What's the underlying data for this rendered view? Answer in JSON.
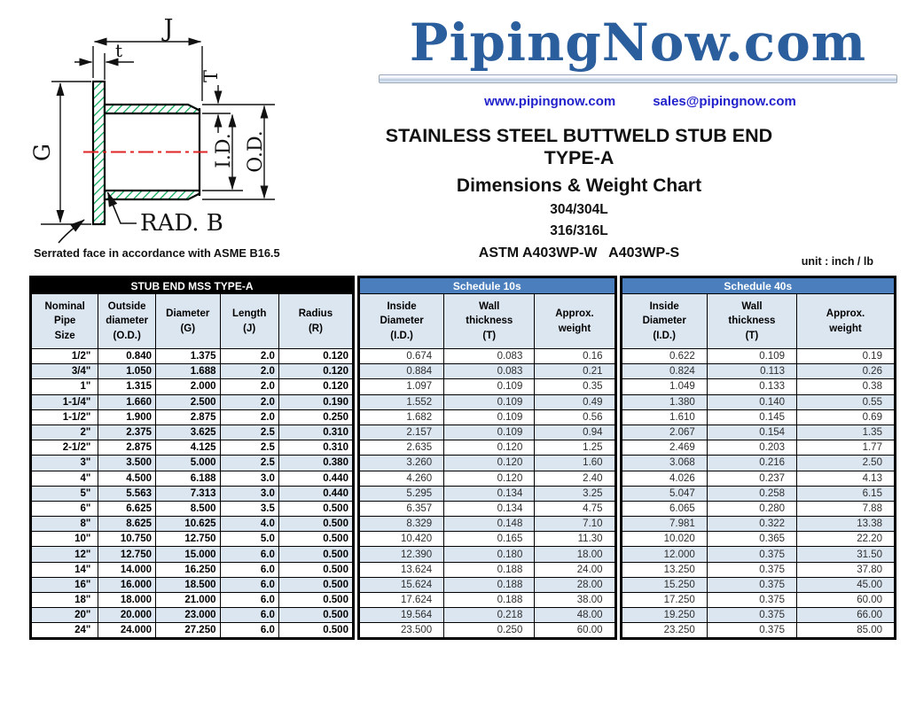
{
  "header": {
    "logo": "PipingNow.com",
    "website": "www.pipingnow.com",
    "email": "sales@pipingnow.com",
    "title1": "STAINLESS STEEL BUTTWELD STUB END TYPE-A",
    "title2": "Dimensions & Weight Chart",
    "grades": [
      "304/304L",
      "316/316L"
    ],
    "astm": "ASTM A403WP-W   A403WP-S",
    "unit_note": "unit : inch / lb"
  },
  "diagram": {
    "labels": {
      "j": "J",
      "t": "t",
      "T": "T",
      "g": "G",
      "id": "I.D.",
      "od": "O.D.",
      "rad": "RAD. B"
    },
    "note": "Serrated face in accordance with ASME B16.5"
  },
  "table": {
    "stub_group": {
      "title": "STUB END MSS TYPE-A",
      "columns": [
        "Nominal\nPipe\nSize",
        "Outside\ndiameter\n(O.D.)",
        "Diameter\n(G)",
        "Length\n(J)",
        "Radius\n(R)"
      ]
    },
    "sch10": {
      "title": "Schedule 10s",
      "columns": [
        "Inside\nDiameter\n(I.D.)",
        "Wall\nthickness\n(T)",
        "Approx.\nweight"
      ]
    },
    "sch40": {
      "title": "Schedule 40s",
      "columns": [
        "Inside\nDiameter\n(I.D.)",
        "Wall\nthickness\n(T)",
        "Approx.\nweight"
      ]
    },
    "rows": [
      [
        "1/2\"",
        "0.840",
        "1.375",
        "2.0",
        "0.120",
        "0.674",
        "0.083",
        "0.16",
        "0.622",
        "0.109",
        "0.19"
      ],
      [
        "3/4\"",
        "1.050",
        "1.688",
        "2.0",
        "0.120",
        "0.884",
        "0.083",
        "0.21",
        "0.824",
        "0.113",
        "0.26"
      ],
      [
        "1\"",
        "1.315",
        "2.000",
        "2.0",
        "0.120",
        "1.097",
        "0.109",
        "0.35",
        "1.049",
        "0.133",
        "0.38"
      ],
      [
        "1-1/4\"",
        "1.660",
        "2.500",
        "2.0",
        "0.190",
        "1.552",
        "0.109",
        "0.49",
        "1.380",
        "0.140",
        "0.55"
      ],
      [
        "1-1/2\"",
        "1.900",
        "2.875",
        "2.0",
        "0.250",
        "1.682",
        "0.109",
        "0.56",
        "1.610",
        "0.145",
        "0.69"
      ],
      [
        "2\"",
        "2.375",
        "3.625",
        "2.5",
        "0.310",
        "2.157",
        "0.109",
        "0.94",
        "2.067",
        "0.154",
        "1.35"
      ],
      [
        "2-1/2\"",
        "2.875",
        "4.125",
        "2.5",
        "0.310",
        "2.635",
        "0.120",
        "1.25",
        "2.469",
        "0.203",
        "1.77"
      ],
      [
        "3\"",
        "3.500",
        "5.000",
        "2.5",
        "0.380",
        "3.260",
        "0.120",
        "1.60",
        "3.068",
        "0.216",
        "2.50"
      ],
      [
        "4\"",
        "4.500",
        "6.188",
        "3.0",
        "0.440",
        "4.260",
        "0.120",
        "2.40",
        "4.026",
        "0.237",
        "4.13"
      ],
      [
        "5\"",
        "5.563",
        "7.313",
        "3.0",
        "0.440",
        "5.295",
        "0.134",
        "3.25",
        "5.047",
        "0.258",
        "6.15"
      ],
      [
        "6\"",
        "6.625",
        "8.500",
        "3.5",
        "0.500",
        "6.357",
        "0.134",
        "4.75",
        "6.065",
        "0.280",
        "7.88"
      ],
      [
        "8\"",
        "8.625",
        "10.625",
        "4.0",
        "0.500",
        "8.329",
        "0.148",
        "7.10",
        "7.981",
        "0.322",
        "13.38"
      ],
      [
        "10\"",
        "10.750",
        "12.750",
        "5.0",
        "0.500",
        "10.420",
        "0.165",
        "11.30",
        "10.020",
        "0.365",
        "22.20"
      ],
      [
        "12\"",
        "12.750",
        "15.000",
        "6.0",
        "0.500",
        "12.390",
        "0.180",
        "18.00",
        "12.000",
        "0.375",
        "31.50"
      ],
      [
        "14\"",
        "14.000",
        "16.250",
        "6.0",
        "0.500",
        "13.624",
        "0.188",
        "24.00",
        "13.250",
        "0.375",
        "37.80"
      ],
      [
        "16\"",
        "16.000",
        "18.500",
        "6.0",
        "0.500",
        "15.624",
        "0.188",
        "28.00",
        "15.250",
        "0.375",
        "45.00"
      ],
      [
        "18\"",
        "18.000",
        "21.000",
        "6.0",
        "0.500",
        "17.624",
        "0.188",
        "38.00",
        "17.250",
        "0.375",
        "60.00"
      ],
      [
        "20\"",
        "20.000",
        "23.000",
        "6.0",
        "0.500",
        "19.564",
        "0.218",
        "48.00",
        "19.250",
        "0.375",
        "66.00"
      ],
      [
        "24\"",
        "24.000",
        "27.250",
        "6.0",
        "0.500",
        "23.500",
        "0.250",
        "60.00",
        "23.250",
        "0.375",
        "85.00"
      ]
    ]
  },
  "colors": {
    "logo_blue": "#2b5e9d",
    "link_blue": "#2222cc",
    "band_blue": "#4a7ebc",
    "band_black": "#000000",
    "row_alt": "#dce6f1",
    "hatch_green": "#00a651",
    "centerline_red": "#e02424"
  }
}
